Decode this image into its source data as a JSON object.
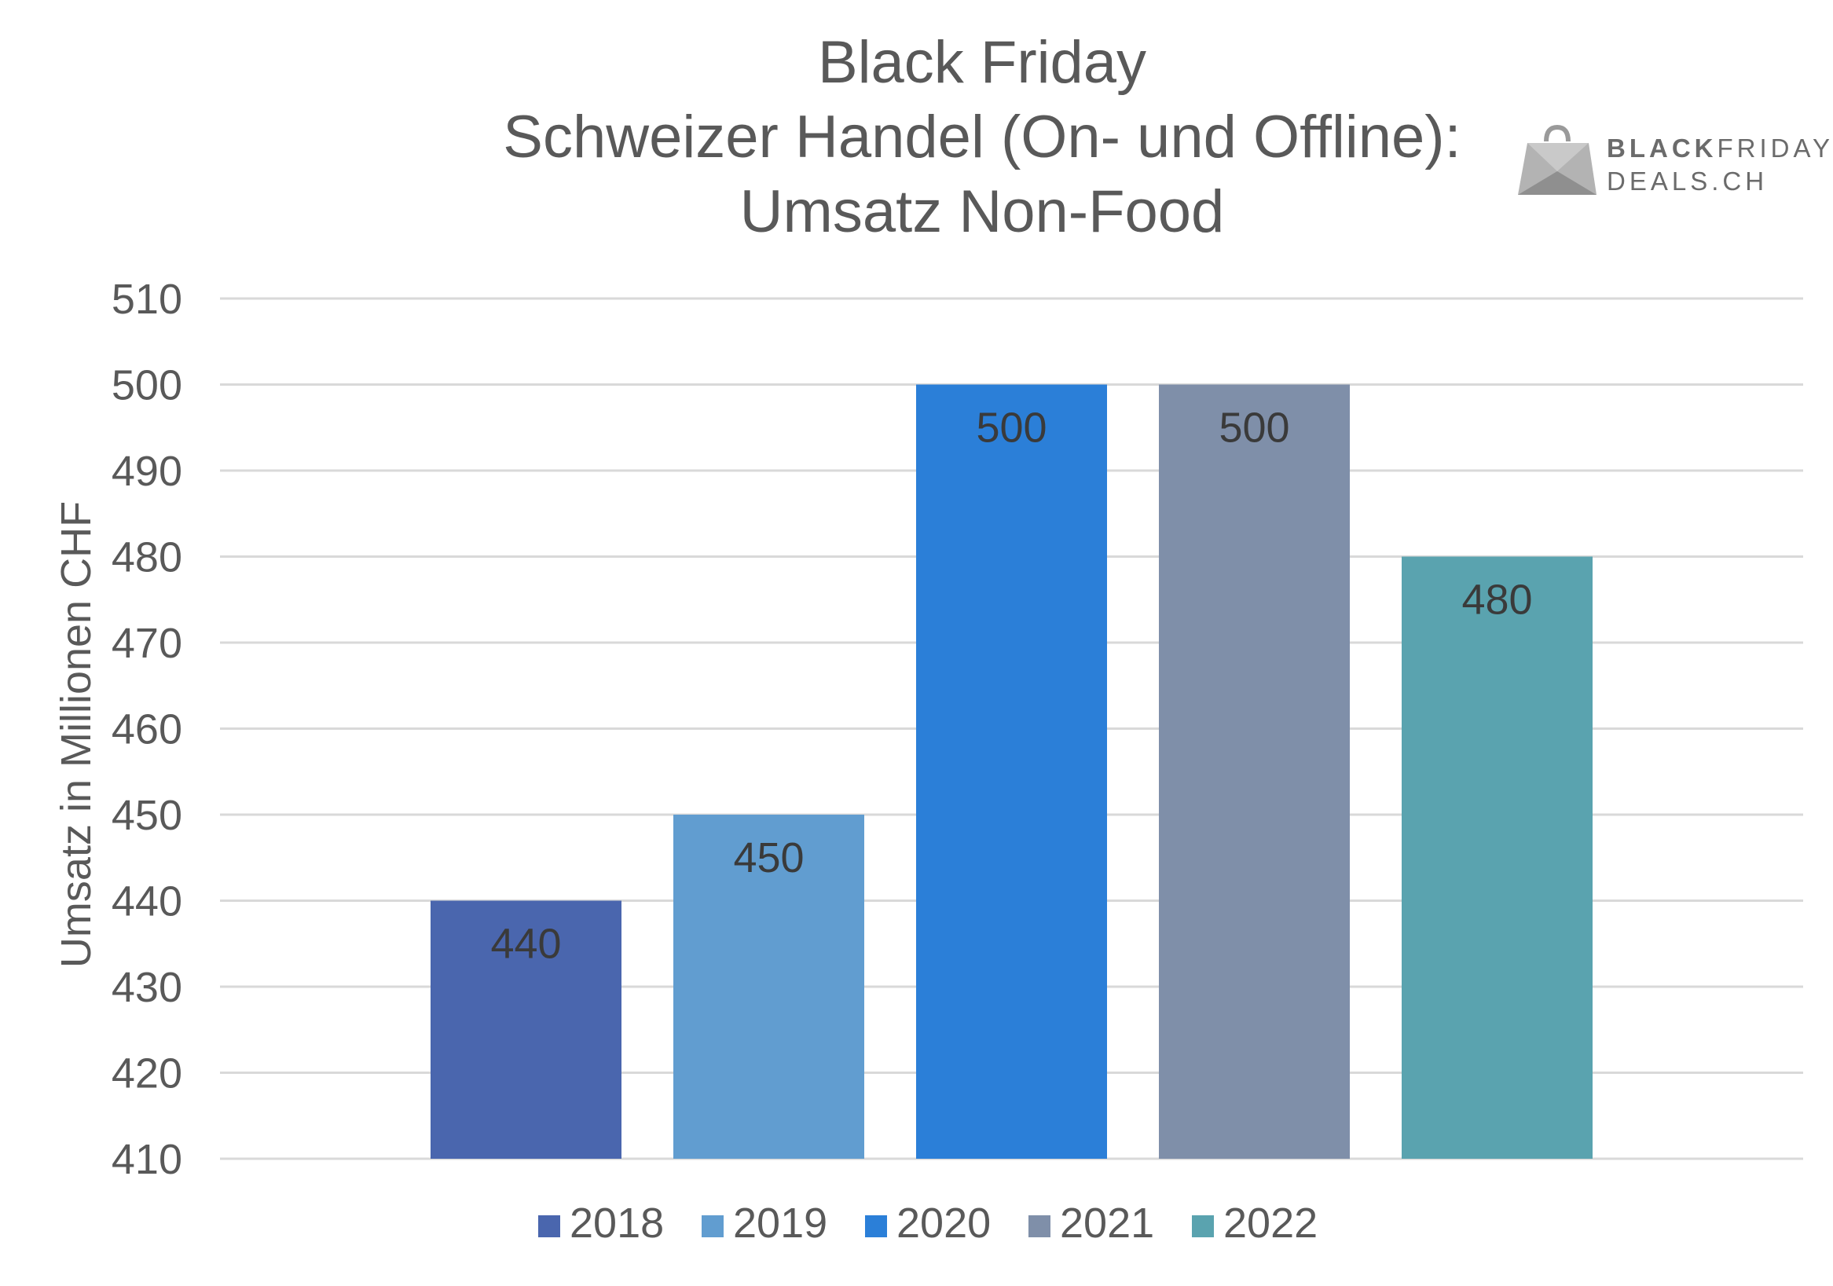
{
  "chart_data": {
    "type": "bar",
    "title_lines": [
      "Black Friday",
      "Schweizer Handel (On- und Offline):",
      "Umsatz Non-Food"
    ],
    "ylabel": "Umsatz in Millionen CHF",
    "xlabel": "",
    "ylim": [
      410,
      510
    ],
    "yticks": [
      510,
      500,
      490,
      480,
      470,
      460,
      450,
      440,
      430,
      420,
      410
    ],
    "grid": true,
    "legend_position": "bottom",
    "series": [
      {
        "name": "2018",
        "value": 440,
        "label": "440",
        "color": "#4a66ae"
      },
      {
        "name": "2019",
        "value": 450,
        "label": "450",
        "color": "#619dd0"
      },
      {
        "name": "2020",
        "value": 500,
        "label": "500",
        "color": "#2b7fd8"
      },
      {
        "name": "2021",
        "value": 500,
        "label": "500",
        "color": "#7f8fa9"
      },
      {
        "name": "2022",
        "value": 480,
        "label": "480",
        "color": "#5aa3af"
      }
    ]
  },
  "logo": {
    "line1_bold": "BLACK",
    "line1_light": "FRIDAY",
    "line2": "DEALS.CH"
  }
}
